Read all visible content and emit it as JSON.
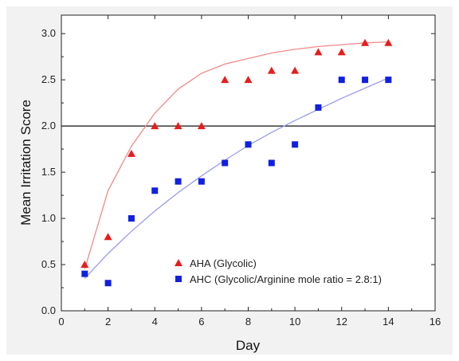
{
  "chart_data": {
    "type": "scatter",
    "title": "",
    "xlabel": "Day",
    "ylabel": "Mean Irritation Score",
    "xlim": [
      0,
      16
    ],
    "ylim": [
      0.0,
      3.2
    ],
    "x_ticks": [
      "0",
      "2",
      "4",
      "6",
      "8",
      "10",
      "12",
      "14",
      "16"
    ],
    "y_ticks": [
      "0.0",
      "0.5",
      "1.0",
      "1.5",
      "2.0",
      "2.5",
      "3.0"
    ],
    "grid": false,
    "reference_line_y": 2.0,
    "legend_position": "bottom-center",
    "series": [
      {
        "name": "AHA (Glycolic)",
        "marker": "triangle",
        "color": "#e81c1c",
        "x": [
          1,
          2,
          3,
          4,
          5,
          6,
          7,
          8,
          9,
          10,
          11,
          12,
          13,
          14
        ],
        "y": [
          0.5,
          0.8,
          1.7,
          2.0,
          2.0,
          2.0,
          2.5,
          2.5,
          2.6,
          2.6,
          2.8,
          2.8,
          2.9,
          2.9
        ],
        "fit_color": "#f08a8a",
        "fit_y": [
          0.45,
          1.3,
          1.78,
          2.14,
          2.4,
          2.57,
          2.67,
          2.73,
          2.79,
          2.83,
          2.86,
          2.88,
          2.9,
          2.91
        ]
      },
      {
        "name": "AHC (Glycolic/Arginine mole ratio = 2.8:1)",
        "marker": "square",
        "color": "#1020e0",
        "x": [
          1,
          2,
          3,
          4,
          5,
          6,
          7,
          8,
          9,
          10,
          11,
          12,
          13,
          14
        ],
        "y": [
          0.4,
          0.3,
          1.0,
          1.3,
          1.4,
          1.4,
          1.6,
          1.8,
          1.6,
          1.8,
          2.2,
          2.5,
          2.5,
          2.5
        ],
        "fit_color": "#9a9af0",
        "fit_y": [
          0.35,
          0.62,
          0.86,
          1.08,
          1.28,
          1.46,
          1.63,
          1.79,
          1.93,
          2.06,
          2.18,
          2.3,
          2.41,
          2.52
        ]
      }
    ]
  }
}
